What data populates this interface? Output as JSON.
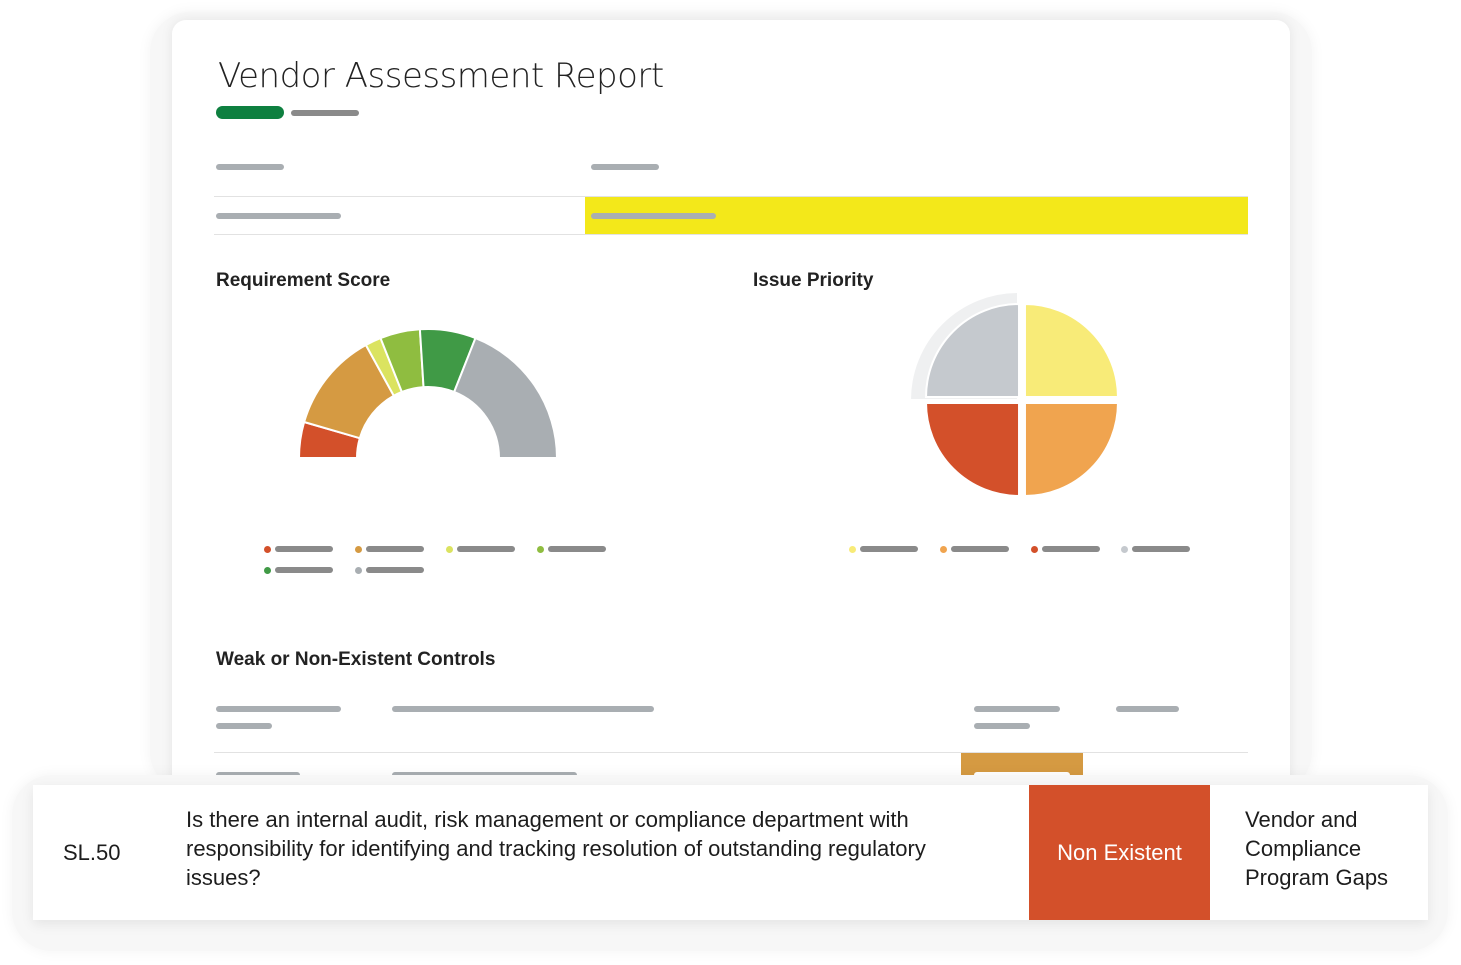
{
  "report": {
    "title": "Vendor Assessment Report",
    "accent": "#0e8040",
    "highlight": "#f3e81a"
  },
  "requirement_score": {
    "title": "Requirement Score",
    "segments": [
      {
        "value": 9,
        "color": "#d3502a"
      },
      {
        "value": 25,
        "color": "#d59a42"
      },
      {
        "value": 4,
        "color": "#dbe360"
      },
      {
        "value": 10,
        "color": "#8fbd40"
      },
      {
        "value": 14,
        "color": "#409a46"
      },
      {
        "value": 38,
        "color": "#a9aeb2"
      }
    ]
  },
  "issue_priority": {
    "title": "Issue Priority",
    "segments": [
      {
        "value": 25,
        "color": "#f8eb78"
      },
      {
        "value": 25,
        "color": "#f0a44f"
      },
      {
        "value": 25,
        "color": "#d3502a"
      },
      {
        "value": 25,
        "color": "#c5c9ce"
      }
    ]
  },
  "controls": {
    "title": "Weak or Non-Existent Controls",
    "row": {
      "id": "SL.50",
      "question": "Is there an internal audit, risk management or compliance department with responsibility for identifying and tracking resolution of outstanding regulatory issues?",
      "status": "Non Existent",
      "status_color": "#d3502a",
      "category": "Vendor and Compliance Program Gaps"
    }
  }
}
